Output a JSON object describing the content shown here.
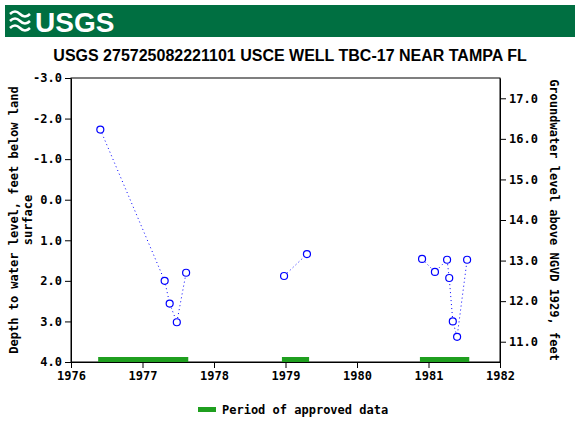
{
  "header": {
    "logo": "USGS"
  },
  "chart_data": {
    "type": "scatter",
    "title": "USGS 275725082221101 USCE WELL TBC-17 NEAR TAMPA FL",
    "ylabel": [
      "Depth to water level, feet below land",
      "surface"
    ],
    "y2label": "Groundwater level above NGVD 1929, feet",
    "xlim": [
      1976,
      1982
    ],
    "xticks": [
      1976,
      1977,
      1978,
      1979,
      1980,
      1981,
      1982
    ],
    "ylim": [
      -3,
      4
    ],
    "yticks": [
      {
        "value": -3,
        "label": "-3.0"
      },
      {
        "value": -2,
        "label": "-2.0"
      },
      {
        "value": -1,
        "label": "-1.0"
      },
      {
        "value": 0,
        "label": "0.0"
      },
      {
        "value": 1,
        "label": "1.0"
      },
      {
        "value": 2,
        "label": "2.0"
      },
      {
        "value": 3,
        "label": "3.0"
      },
      {
        "value": 4,
        "label": "4.0"
      }
    ],
    "y2lim": [
      17.5,
      10.5
    ],
    "y2ticks": [
      {
        "value": 11,
        "label": "11.0"
      },
      {
        "value": 12,
        "label": "12.0"
      },
      {
        "value": 13,
        "label": "13.0"
      },
      {
        "value": 14,
        "label": "14.0"
      },
      {
        "value": 15,
        "label": "15.0"
      },
      {
        "value": 16,
        "label": "16.0"
      },
      {
        "value": 17,
        "label": "17.0"
      }
    ],
    "series": [
      {
        "color": "#0000ff",
        "marker": "circle",
        "line_style": "dotted",
        "x": [
          1976.41,
          1977.31,
          1977.38,
          1977.48,
          1977.61,
          null,
          1978.98,
          1979.3,
          null,
          1980.91,
          1981.09,
          1981.26,
          1981.29,
          1981.34,
          1981.4,
          1981.54
        ],
        "values": [
          -1.73,
          2.0,
          2.56,
          3.02,
          1.8,
          null,
          1.88,
          1.34,
          null,
          1.46,
          1.78,
          1.48,
          1.93,
          3.0,
          3.38,
          1.48
        ]
      }
    ],
    "approved_periods": {
      "name": "Period of approved data",
      "color": "#1f9f1f",
      "ranges": [
        [
          1976.38,
          1977.64
        ],
        [
          1978.95,
          1979.33
        ],
        [
          1980.88,
          1981.57
        ]
      ]
    },
    "legend": "bottom"
  }
}
